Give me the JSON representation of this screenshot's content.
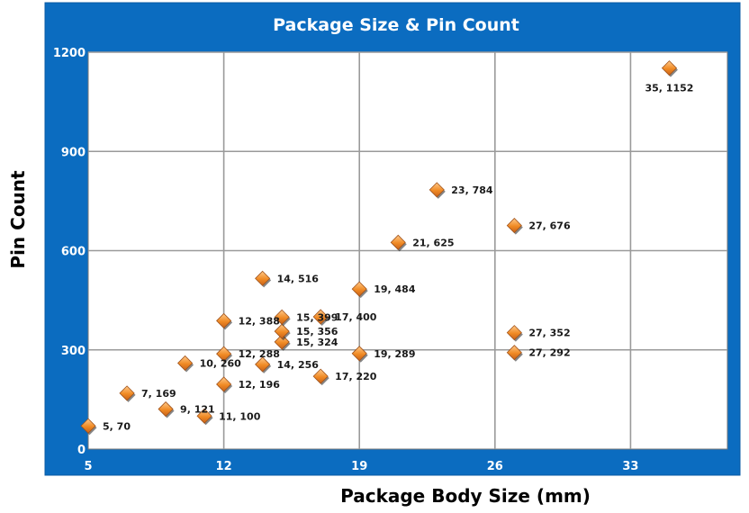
{
  "chart_data": {
    "type": "scatter",
    "title": "Package Size & Pin Count",
    "xlabel": "Package Body Size (mm)",
    "ylabel": "Pin Count",
    "xlim": [
      5,
      38
    ],
    "ylim": [
      0,
      1200
    ],
    "xticks": [
      "5",
      "12",
      "19",
      "26",
      "33"
    ],
    "yticks": [
      "0",
      "300",
      "600",
      "900",
      "1200"
    ],
    "grid": true,
    "marker_color": "#f08a24",
    "frame_color": "#0b6cc0",
    "points": [
      {
        "x": 5,
        "y": 70,
        "label": "5, 70"
      },
      {
        "x": 7,
        "y": 169,
        "label": "7, 169"
      },
      {
        "x": 9,
        "y": 121,
        "label": "9, 121"
      },
      {
        "x": 10,
        "y": 260,
        "label": "10, 260"
      },
      {
        "x": 11,
        "y": 100,
        "label": "11, 100"
      },
      {
        "x": 12,
        "y": 196,
        "label": "12, 196"
      },
      {
        "x": 12,
        "y": 288,
        "label": "12, 288"
      },
      {
        "x": 12,
        "y": 388,
        "label": "12, 388"
      },
      {
        "x": 14,
        "y": 256,
        "label": "14, 256"
      },
      {
        "x": 14,
        "y": 516,
        "label": "14, 516"
      },
      {
        "x": 15,
        "y": 324,
        "label": "15, 324"
      },
      {
        "x": 15,
        "y": 356,
        "label": "15, 356"
      },
      {
        "x": 15,
        "y": 399,
        "label": "15, 399"
      },
      {
        "x": 17,
        "y": 220,
        "label": "17, 220"
      },
      {
        "x": 17,
        "y": 400,
        "label": "17, 400"
      },
      {
        "x": 19,
        "y": 289,
        "label": "19, 289"
      },
      {
        "x": 19,
        "y": 484,
        "label": "19, 484"
      },
      {
        "x": 21,
        "y": 625,
        "label": "21, 625"
      },
      {
        "x": 23,
        "y": 784,
        "label": "23, 784"
      },
      {
        "x": 27,
        "y": 676,
        "label": "27, 676"
      },
      {
        "x": 27,
        "y": 352,
        "label": "27, 352"
      },
      {
        "x": 27,
        "y": 292,
        "label": "27, 292"
      },
      {
        "x": 35,
        "y": 1152,
        "label": "35, 1152"
      }
    ]
  }
}
